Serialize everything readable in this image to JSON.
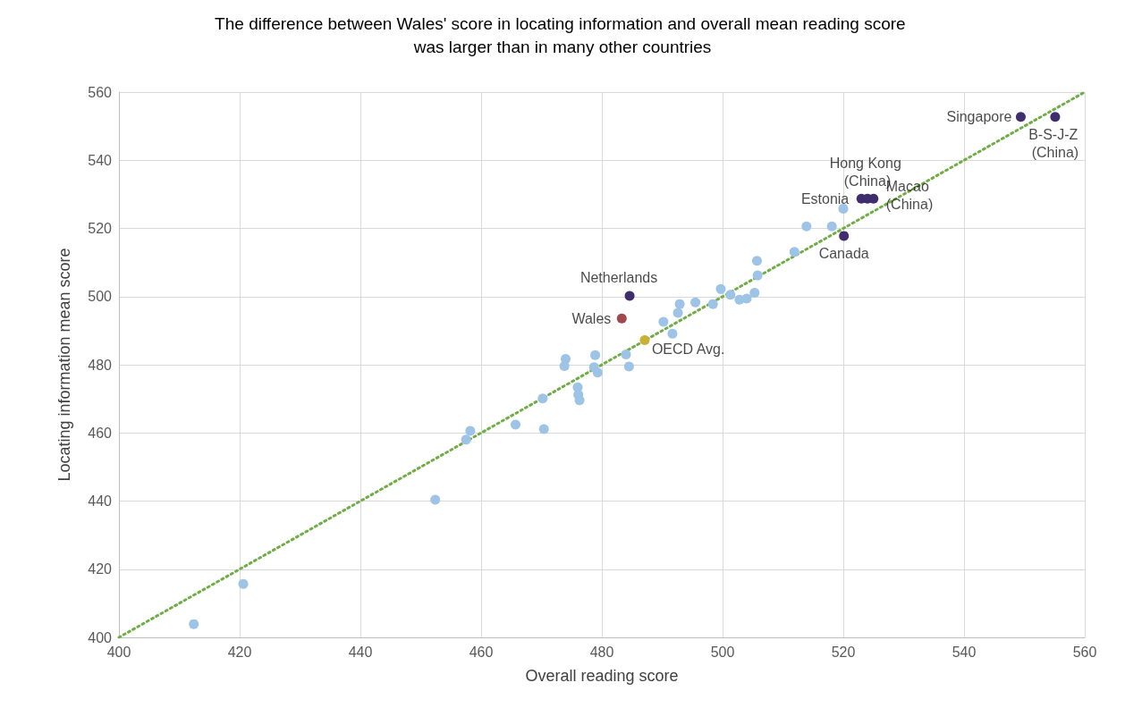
{
  "chart_data": {
    "type": "scatter",
    "title": "The difference between Wales' score in locating information and overall mean reading score was larger than in many other countries",
    "xlabel": "Overall reading score",
    "ylabel": "Locating information mean score",
    "xlim": [
      400,
      560
    ],
    "xticks": [
      400,
      420,
      440,
      460,
      480,
      500,
      520,
      540,
      560
    ],
    "ylim": [
      400,
      560
    ],
    "yticks": [
      400,
      420,
      440,
      460,
      480,
      500,
      520,
      540,
      560
    ],
    "grid": true,
    "marker": "circle",
    "series": [
      {
        "color": "#9dc3e6",
        "x": [
          412.4,
          420.6,
          452.4,
          457.5,
          458.2,
          465.7,
          470.4,
          470.2,
          476.0,
          476.1,
          476.3,
          474.0,
          473.8,
          478.9,
          478.7,
          479.3,
          484.0,
          484.5,
          490.2,
          491.7,
          492.6,
          492.9,
          495.5,
          498.4,
          499.7,
          501.3,
          502.8,
          504.0,
          505.3,
          505.8,
          505.7,
          511.9,
          513.9,
          518.1,
          520.0
        ],
        "values": [
          403.9,
          415.7,
          440.4,
          458.0,
          460.6,
          462.4,
          461.1,
          470.1,
          473.4,
          471.2,
          469.6,
          481.7,
          479.6,
          482.8,
          479.3,
          477.7,
          483.0,
          479.5,
          492.6,
          489.1,
          495.2,
          497.8,
          498.3,
          497.8,
          502.2,
          500.5,
          499.1,
          499.4,
          501.1,
          506.2,
          510.5,
          513.1,
          520.6,
          520.6,
          525.8
        ]
      },
      {
        "color": "#3f2d6e",
        "x": [
          549.4,
          555.1,
          524.0,
          523.0,
          525.0,
          520.1,
          484.6
        ],
        "values": [
          552.7,
          552.7,
          528.7,
          528.7,
          528.7,
          517.8,
          500.2
        ]
      },
      {
        "color": "#a0474f",
        "x": [
          483.3
        ],
        "values": [
          493.6
        ]
      },
      {
        "color": "#c9b037",
        "x": [
          487.1
        ],
        "values": [
          487.2
        ]
      },
      {
        "type": "line",
        "color": "#70ad47",
        "line_style": "dotted",
        "marker": "none",
        "x": [
          400,
          560
        ],
        "values": [
          400,
          560
        ]
      }
    ],
    "annotations": [
      {
        "text": "Singapore",
        "x": 549.4,
        "y": 552.7
      },
      {
        "text": "B-S-J-Z (China)",
        "x": 555.1,
        "y": 552.7
      },
      {
        "text": "Hong Kong (China)",
        "x": 524.0,
        "y": 528.7
      },
      {
        "text": "Estonia",
        "x": 523.0,
        "y": 528.7
      },
      {
        "text": "Macao (China)",
        "x": 525.0,
        "y": 528.7
      },
      {
        "text": "Canada",
        "x": 520.1,
        "y": 517.8
      },
      {
        "text": "Netherlands",
        "x": 484.6,
        "y": 500.2
      },
      {
        "text": "Wales",
        "x": 483.3,
        "y": 493.6
      },
      {
        "text": "OECD Avg.",
        "x": 487.1,
        "y": 487.2
      }
    ]
  }
}
